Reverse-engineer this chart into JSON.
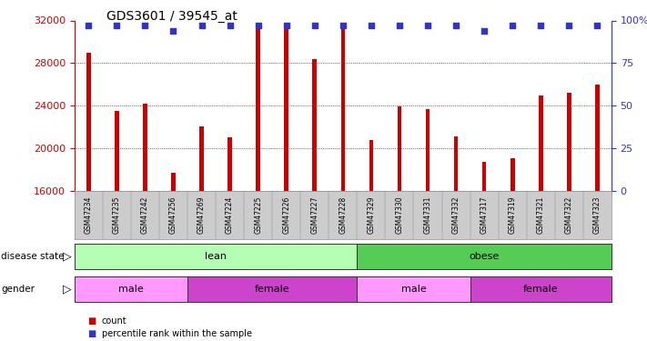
{
  "title": "GDS3601 / 39545_at",
  "samples": [
    "GSM47234",
    "GSM47235",
    "GSM47242",
    "GSM47256",
    "GSM47269",
    "GSM47224",
    "GSM47225",
    "GSM47226",
    "GSM47227",
    "GSM47228",
    "GSM47329",
    "GSM47330",
    "GSM47331",
    "GSM47332",
    "GSM47317",
    "GSM47319",
    "GSM47321",
    "GSM47322",
    "GSM47323"
  ],
  "counts": [
    29000,
    23500,
    24200,
    17700,
    22100,
    21000,
    31200,
    31500,
    28400,
    31500,
    20800,
    23900,
    23700,
    21100,
    18700,
    19100,
    25000,
    25200,
    26000
  ],
  "percentile": [
    97,
    97,
    97,
    94,
    97,
    97,
    97,
    97,
    97,
    97,
    97,
    97,
    97,
    97,
    94,
    97,
    97,
    97,
    97
  ],
  "ymin": 16000,
  "ymax": 32000,
  "yticks": [
    16000,
    20000,
    24000,
    28000,
    32000
  ],
  "right_yticks_vals": [
    0,
    25,
    50,
    75,
    100
  ],
  "right_yticks_labels": [
    "0",
    "25",
    "50",
    "75",
    "100%"
  ],
  "bar_color": "#cc0000",
  "dot_color": "#3333cc",
  "grid_color": "#000000",
  "disease_state": [
    {
      "label": "lean",
      "start": 0,
      "end": 10,
      "color": "#b3ffb3"
    },
    {
      "label": "obese",
      "start": 10,
      "end": 19,
      "color": "#55cc55"
    }
  ],
  "gender": [
    {
      "label": "male",
      "start": 0,
      "end": 4,
      "color": "#ff99ff"
    },
    {
      "label": "female",
      "start": 4,
      "end": 10,
      "color": "#cc44cc"
    },
    {
      "label": "male",
      "start": 10,
      "end": 14,
      "color": "#ff99ff"
    },
    {
      "label": "female",
      "start": 14,
      "end": 19,
      "color": "#cc44cc"
    }
  ],
  "legend_items": [
    {
      "label": "count",
      "color": "#cc0000"
    },
    {
      "label": "percentile rank within the sample",
      "color": "#3333cc"
    }
  ],
  "label_disease_state": "disease state",
  "label_gender": "gender",
  "tick_bg_color": "#cccccc",
  "title_fontsize": 10,
  "bar_width": 0.15
}
